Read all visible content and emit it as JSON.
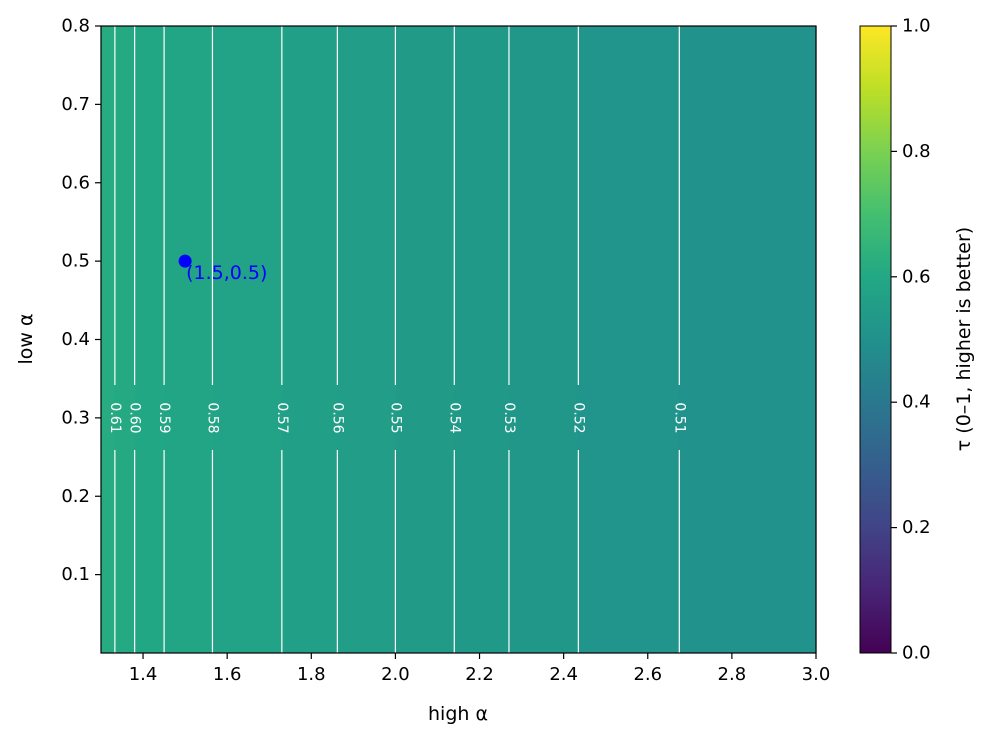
{
  "chart_data": {
    "type": "heatmap",
    "subtype": "filled-contour",
    "xlabel": "high α",
    "ylabel": "low α",
    "xlim": [
      1.3,
      3.0
    ],
    "ylim": [
      0.0,
      0.8
    ],
    "x_ticks": [
      1.4,
      1.6,
      1.8,
      2.0,
      2.2,
      2.4,
      2.6,
      2.8,
      3.0
    ],
    "x_tick_labels": [
      "1.4",
      "1.6",
      "1.8",
      "2.0",
      "2.2",
      "2.4",
      "2.6",
      "2.8",
      "3.0"
    ],
    "y_ticks": [
      0.1,
      0.2,
      0.3,
      0.4,
      0.5,
      0.6,
      0.7,
      0.8
    ],
    "y_tick_labels": [
      "0.1",
      "0.2",
      "0.3",
      "0.4",
      "0.5",
      "0.6",
      "0.7",
      "0.8"
    ],
    "colormap": "viridis",
    "colorbar": {
      "label": "τ (0–1, higher is better)",
      "range": [
        0.0,
        1.0
      ],
      "ticks": [
        0.0,
        0.2,
        0.4,
        0.6,
        0.8,
        1.0
      ],
      "tick_labels": [
        "0.0",
        "0.2",
        "0.4",
        "0.6",
        "0.8",
        "1.0"
      ]
    },
    "contour_color": "#ffffff",
    "contours": [
      {
        "level": 0.61,
        "label": "0.61",
        "x": 1.333
      },
      {
        "level": 0.6,
        "label": "0.60",
        "x": 1.38
      },
      {
        "level": 0.59,
        "label": "0.59",
        "x": 1.45
      },
      {
        "level": 0.58,
        "label": "0.58",
        "x": 1.565
      },
      {
        "level": 0.57,
        "label": "0.57",
        "x": 1.73
      },
      {
        "level": 0.56,
        "label": "0.56",
        "x": 1.862
      },
      {
        "level": 0.55,
        "label": "0.55",
        "x": 2.0
      },
      {
        "level": 0.54,
        "label": "0.54",
        "x": 2.14
      },
      {
        "level": 0.53,
        "label": "0.53",
        "x": 2.27
      },
      {
        "level": 0.52,
        "label": "0.52",
        "x": 2.435
      },
      {
        "level": 0.51,
        "label": "0.51",
        "x": 2.675
      }
    ],
    "bands": [
      {
        "x0": 1.3,
        "x1": 1.333,
        "value": 0.615
      },
      {
        "x0": 1.333,
        "x1": 1.38,
        "value": 0.605
      },
      {
        "x0": 1.38,
        "x1": 1.45,
        "value": 0.595
      },
      {
        "x0": 1.45,
        "x1": 1.565,
        "value": 0.585
      },
      {
        "x0": 1.565,
        "x1": 1.73,
        "value": 0.575
      },
      {
        "x0": 1.73,
        "x1": 1.862,
        "value": 0.565
      },
      {
        "x0": 1.862,
        "x1": 2.0,
        "value": 0.555
      },
      {
        "x0": 2.0,
        "x1": 2.14,
        "value": 0.545
      },
      {
        "x0": 2.14,
        "x1": 2.27,
        "value": 0.535
      },
      {
        "x0": 2.27,
        "x1": 2.435,
        "value": 0.525
      },
      {
        "x0": 2.435,
        "x1": 2.675,
        "value": 0.515
      },
      {
        "x0": 2.675,
        "x1": 3.0,
        "value": 0.505
      }
    ],
    "marker": {
      "x": 1.5,
      "y": 0.5,
      "label": "(1.5,0.5)",
      "color": "#0000ff"
    }
  }
}
